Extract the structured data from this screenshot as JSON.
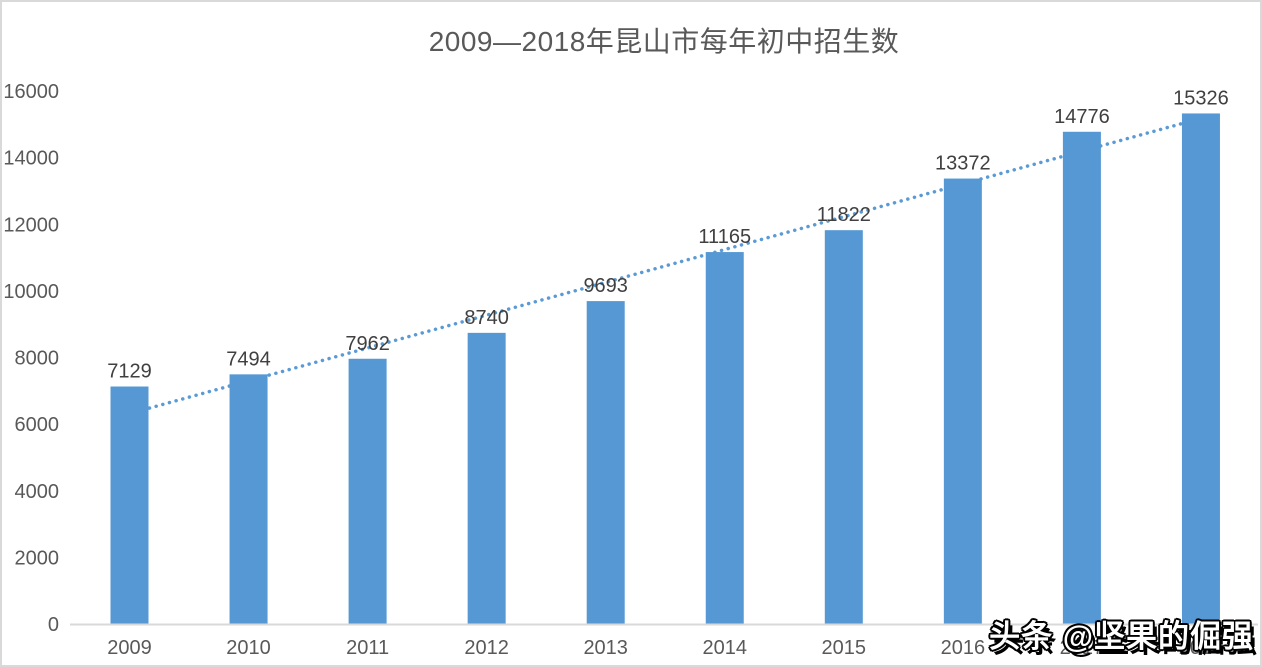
{
  "watermark": "头条 @坚果的倔强",
  "colors": {
    "bar": "#5598D4",
    "trendline": "#5B9BD5",
    "title_text": "#595959",
    "axis_text": "#595959",
    "data_label_text": "#404040",
    "axis_line": "#D9D9D9",
    "chart_border": "#D9D9D9",
    "background": "#FFFFFF"
  },
  "chart_data": {
    "type": "bar",
    "title": "2009—2018年昆山市每年初中招生数",
    "categories": [
      "2009",
      "2010",
      "2011",
      "2012",
      "2013",
      "2014",
      "2015",
      "2016",
      "2017",
      "2018"
    ],
    "values": [
      7129,
      7494,
      7962,
      8740,
      9693,
      11165,
      11822,
      13372,
      14776,
      15326
    ],
    "data_labels": true,
    "xlabel": "",
    "ylabel": "",
    "ylim": [
      0,
      16000
    ],
    "ytick_step": 2000,
    "yticks": [
      0,
      2000,
      4000,
      6000,
      8000,
      10000,
      12000,
      14000,
      16000
    ],
    "grid": false,
    "legend": "none",
    "trendline": {
      "type": "linear",
      "style": "dotted",
      "start_value": 6316,
      "end_value": 15180
    }
  }
}
